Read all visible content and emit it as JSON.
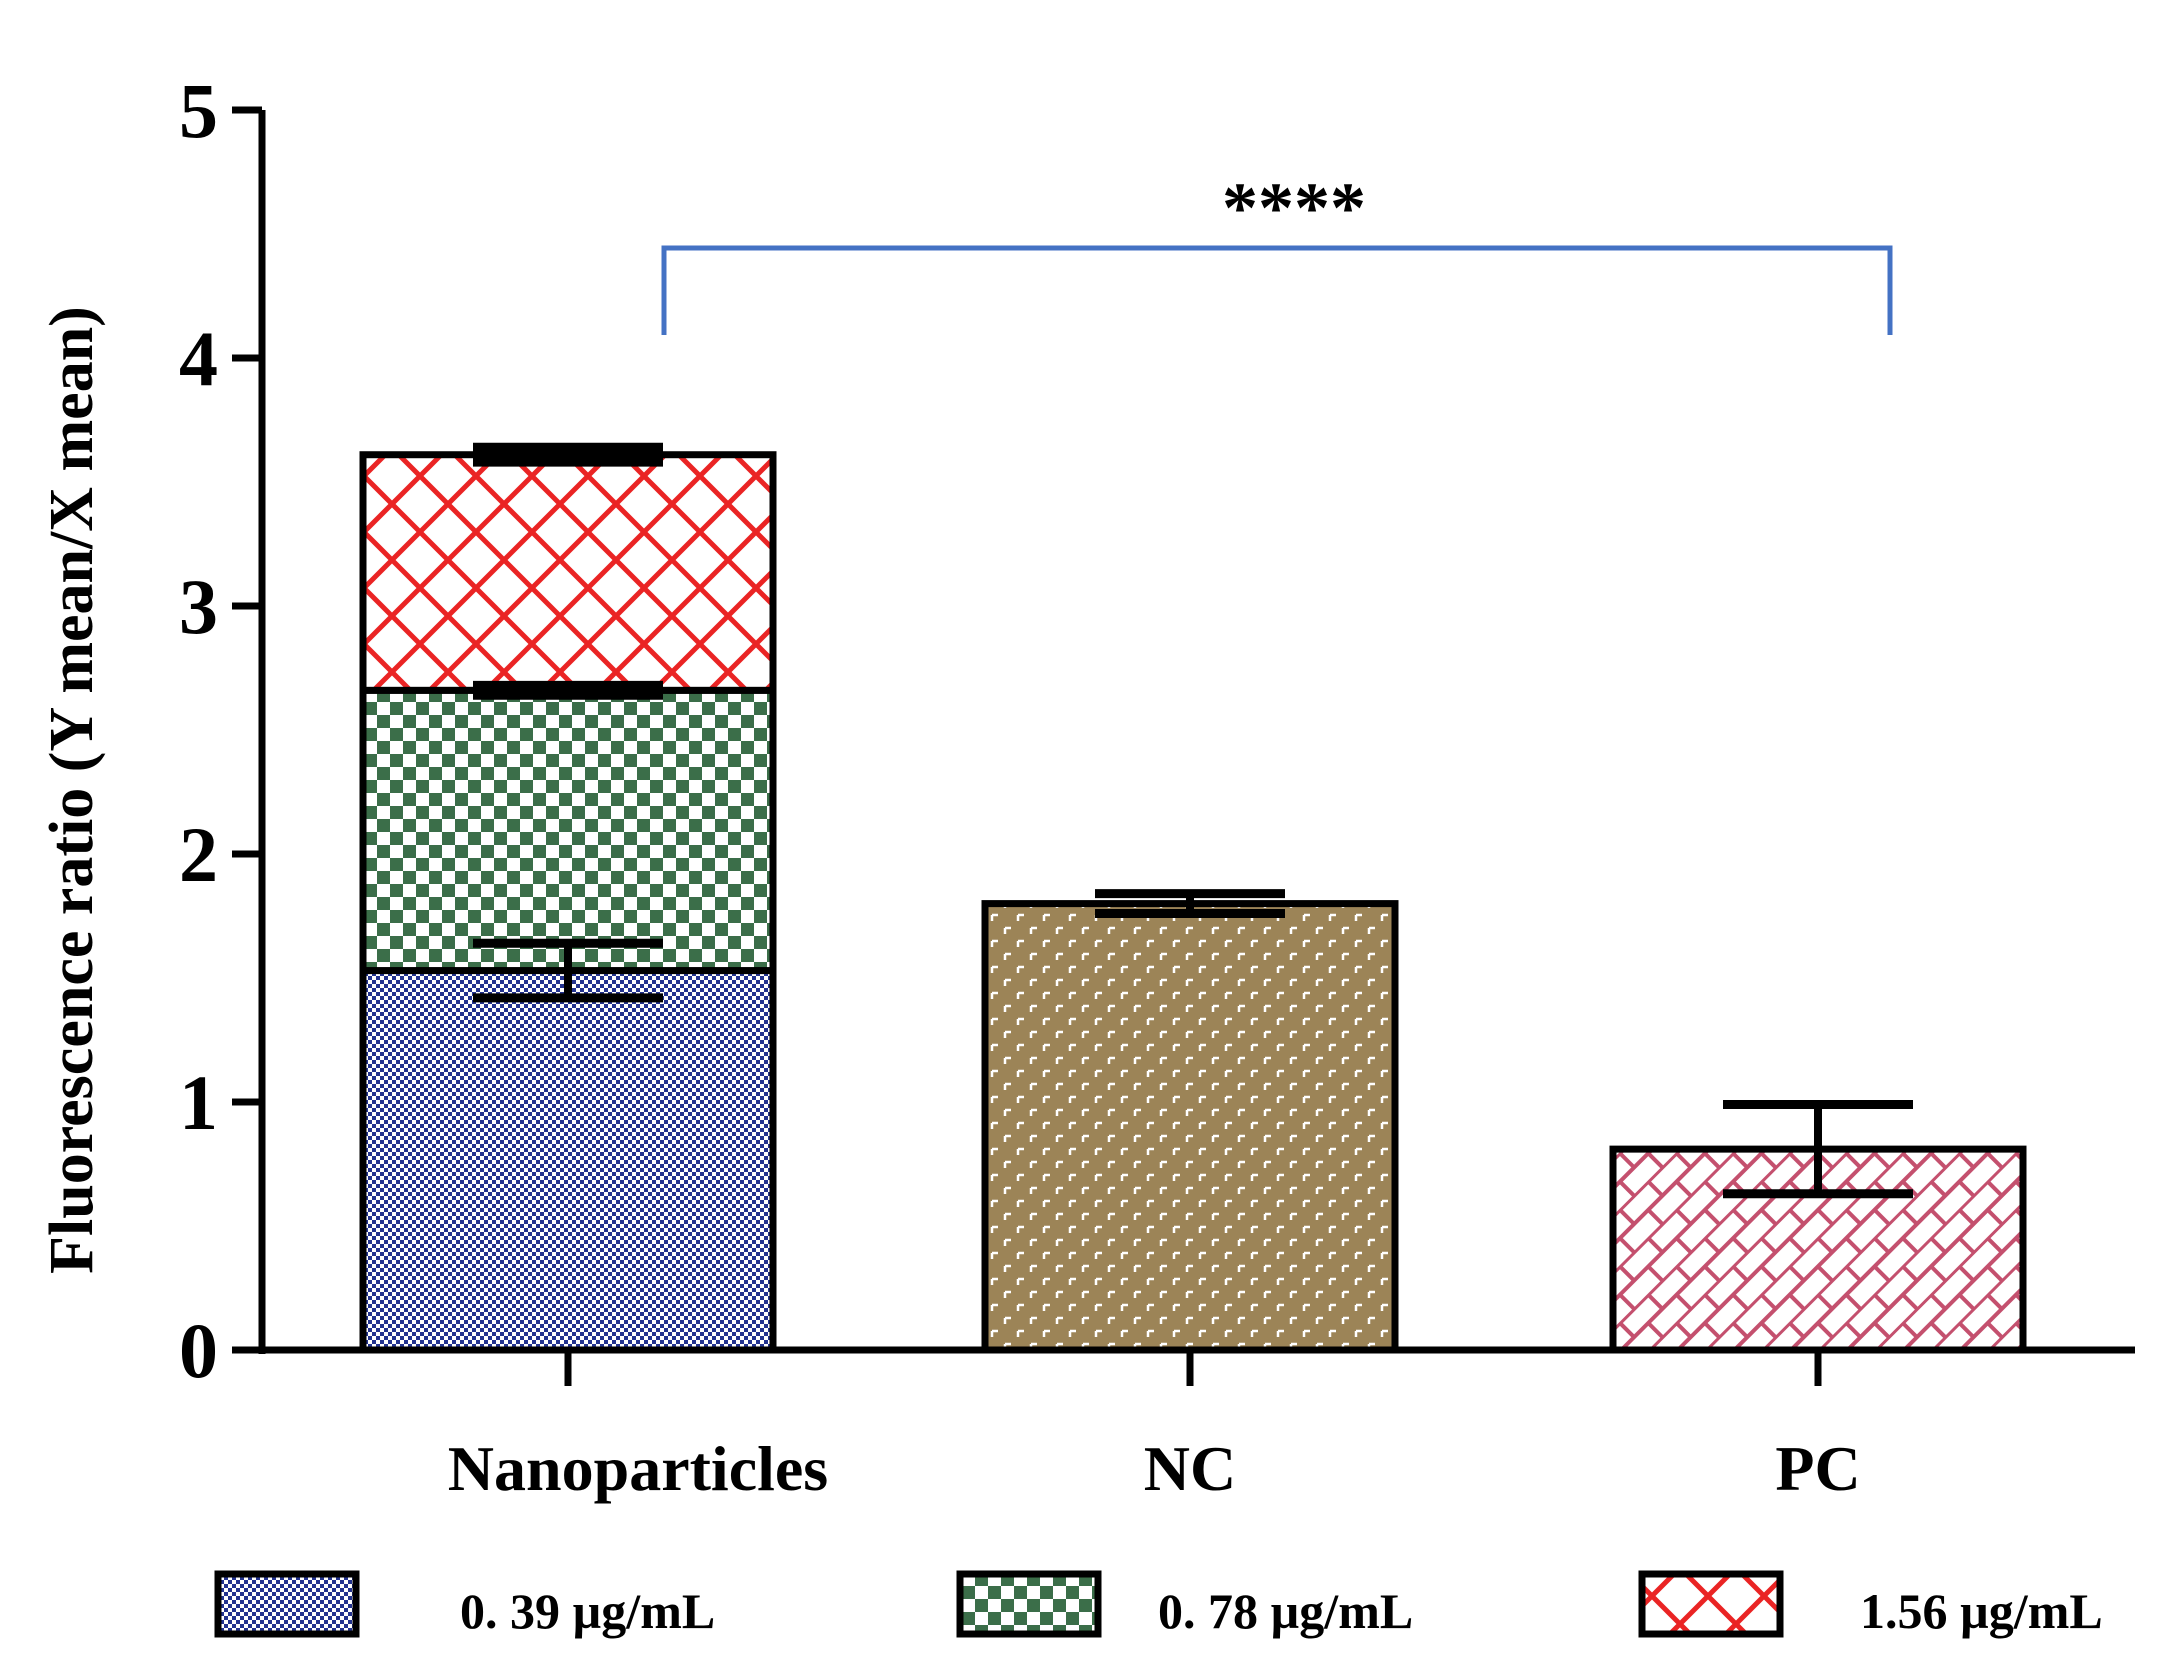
{
  "chart_data": {
    "type": "bar",
    "stacked": true,
    "title": "",
    "xlabel": "",
    "ylabel": "Fluorescence ratio (Y mean/X mean)",
    "ylim": [
      0,
      5
    ],
    "yticks": [
      "0",
      "1",
      "2",
      "3",
      "4",
      "5"
    ],
    "categories": [
      "Nanoparticles",
      "NC",
      "PC"
    ],
    "stacks": [
      {
        "category": "Nanoparticles",
        "segments": [
          {
            "name": "0. 39 µg/mL",
            "value": 1.53,
            "error": 0.11,
            "color": "#23338f",
            "pattern": "checker-fine"
          },
          {
            "name": "0. 78 µg/mL",
            "value": 1.13,
            "error": 0.02,
            "color": "#3b6e49",
            "pattern": "checker"
          },
          {
            "name": "1.56 µg/mL",
            "value": 0.95,
            "error": 0.03,
            "color": "#ea2424",
            "pattern": "crosshatch"
          }
        ]
      },
      {
        "category": "NC",
        "segments": [
          {
            "name": "NC",
            "value": 1.8,
            "error": 0.04,
            "color": "#9c8457",
            "pattern": "basket"
          }
        ]
      },
      {
        "category": "PC",
        "segments": [
          {
            "name": "PC",
            "value": 0.81,
            "error": 0.18,
            "color": "#c4506e",
            "pattern": "brick"
          }
        ]
      }
    ],
    "significance": {
      "from": "Nanoparticles",
      "to": "PC",
      "label": "****",
      "color": "#4472c4"
    },
    "legend": {
      "placement": "bottom",
      "entries": [
        {
          "label": "0. 39 µg/mL",
          "pattern": "checker-fine",
          "color": "#23338f"
        },
        {
          "label": "0. 78 µg/mL",
          "pattern": "checker",
          "color": "#3b6e49"
        },
        {
          "label": "1.56 µg/mL",
          "pattern": "crosshatch",
          "color": "#ea2424"
        }
      ]
    }
  }
}
